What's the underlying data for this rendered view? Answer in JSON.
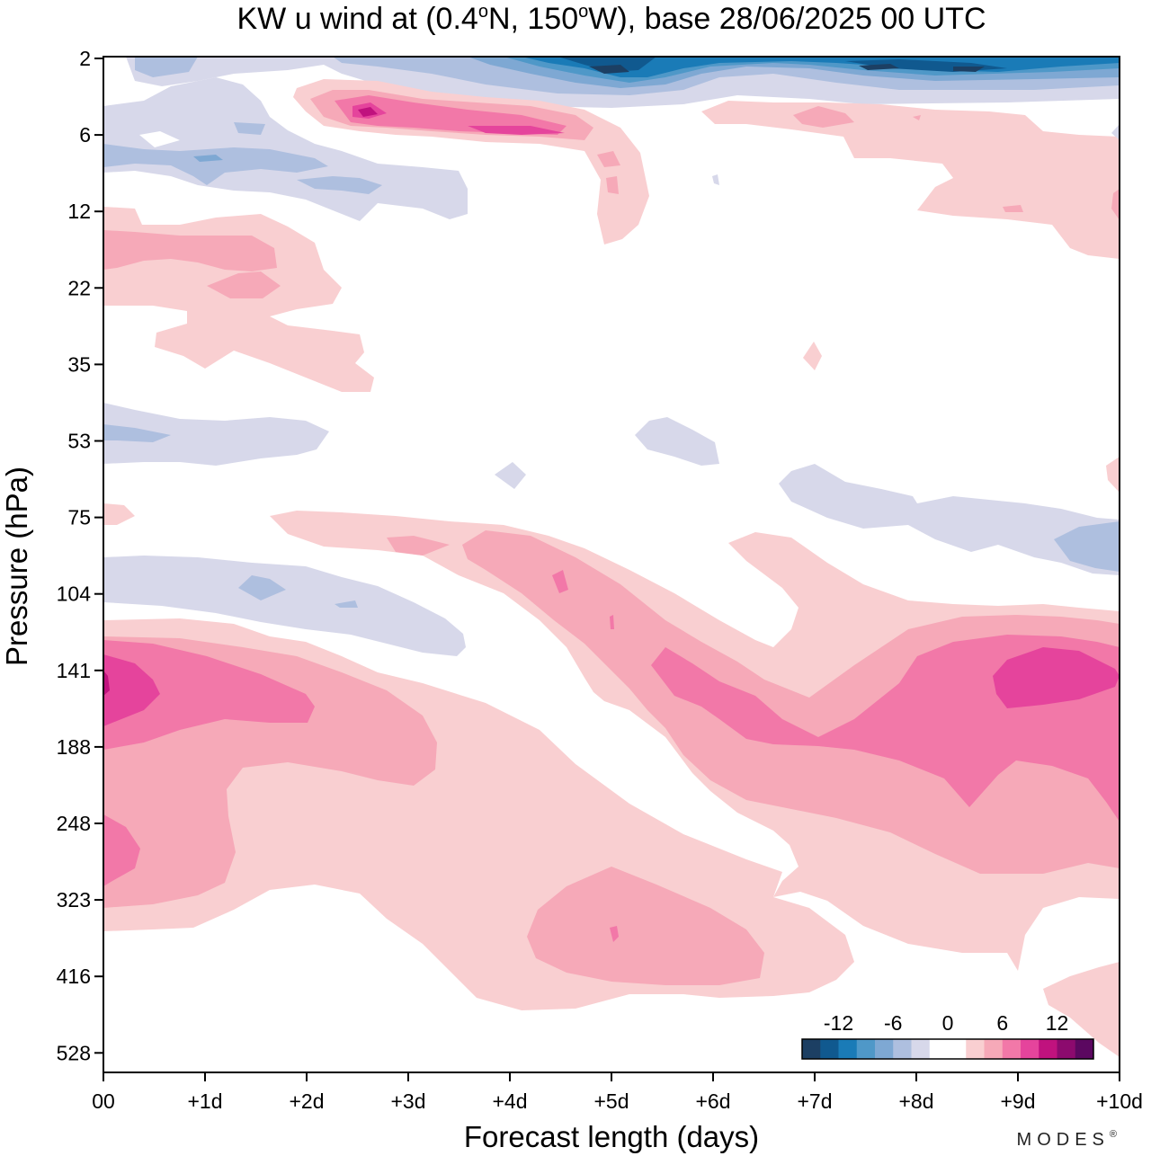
{
  "chart_data": {
    "type": "heatmap",
    "title_prefix": "KW u wind at (0.4",
    "title_mid": "N, 150",
    "title_suffix": "W),  base 28/06/2025  00 UTC",
    "degree_symbol": "o",
    "xlabel": "Forecast length (days)",
    "ylabel": "Pressure (hPa)",
    "xlim": [
      0,
      10
    ],
    "x_ticks": [
      0,
      1,
      2,
      3,
      4,
      5,
      6,
      7,
      8,
      9,
      10
    ],
    "x_tick_labels": [
      "00",
      "+1d",
      "+2d",
      "+3d",
      "+4d",
      "+5d",
      "+6d",
      "+7d",
      "+8d",
      "+9d",
      "+10d"
    ],
    "y_ticks": [
      2,
      6,
      12,
      22,
      35,
      53,
      75,
      104,
      141,
      188,
      248,
      323,
      416,
      528
    ],
    "y_tick_labels": [
      "2",
      "6",
      "12",
      "22",
      "35",
      "53",
      "75",
      "104",
      "141",
      "188",
      "248",
      "323",
      "416",
      "528"
    ],
    "y_axis": "pressure, decreasing upward",
    "colorbar": {
      "labels": [
        "-12",
        "-6",
        "0",
        "6",
        "12"
      ],
      "colors": [
        "#1c3f63",
        "#10598f",
        "#1a7bb7",
        "#4f98c8",
        "#7ea8d3",
        "#aebfdf",
        "#d7d8ea",
        "#ffffff",
        "#ffffff",
        "#f9cfd1",
        "#f6a9b8",
        "#f278a8",
        "#e5449c",
        "#c0127e",
        "#8c0a6e",
        "#5b0860"
      ]
    },
    "features": [
      {
        "name": "upper easterly band (top)",
        "x_days": [
          0.4,
          10
        ],
        "p_hPa": [
          2,
          3
        ],
        "min_value": -12
      },
      {
        "name": "upper westerly jet",
        "x_days": [
          1.9,
          5.5
        ],
        "p_hPa": [
          3,
          12
        ],
        "max_value": 10
      },
      {
        "name": "upper-right westerly",
        "x_days": [
          6,
          10
        ],
        "p_hPa": [
          4,
          15
        ],
        "max_value": 6
      },
      {
        "name": "lower stratosphere westerly",
        "x_days": [
          0,
          2.6
        ],
        "p_hPa": [
          12,
          40
        ],
        "max_value": 6
      },
      {
        "name": "easterly near 53 hPa",
        "x_days": [
          0,
          2.2
        ],
        "p_hPa": [
          45,
          60
        ],
        "min_value": -4
      },
      {
        "name": "easterly near 80 hPa",
        "x_days": [
          6.6,
          10
        ],
        "p_hPa": [
          62,
          110
        ],
        "min_value": -4
      },
      {
        "name": "easterly near 110 hPa",
        "x_days": [
          0,
          3.6
        ],
        "p_hPa": [
          95,
          130
        ],
        "min_value": -4
      },
      {
        "name": "descending westerly band",
        "x_days": [
          1.6,
          7
        ],
        "p_hPa": [
          75,
          190
        ],
        "max_value": 8
      },
      {
        "name": "tropopause westerly (left)",
        "x_days": [
          0,
          3.3
        ],
        "p_hPa": [
          125,
          320
        ],
        "max_value": 10
      },
      {
        "name": "tropopause westerly (right)",
        "x_days": [
          5.5,
          10
        ],
        "p_hPa": [
          120,
          250
        ],
        "max_value": 10
      },
      {
        "name": "mid-troposphere westerly",
        "x_days": [
          0,
          7
        ],
        "p_hPa": [
          180,
          480
        ],
        "max_value": 6
      }
    ]
  },
  "brand": "MODES",
  "brand_mark": "®"
}
